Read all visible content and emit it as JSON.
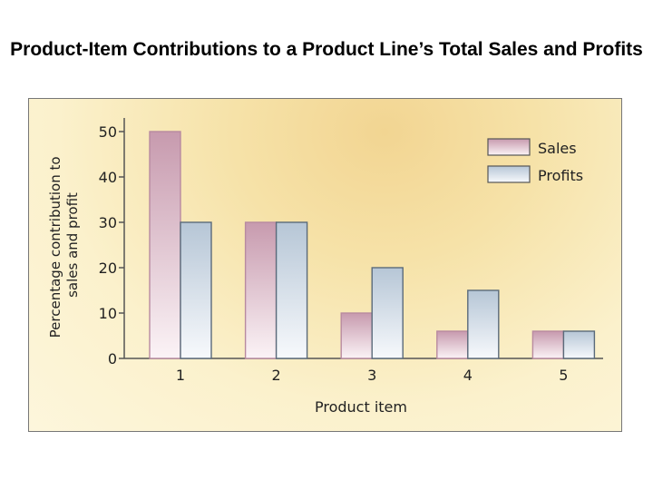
{
  "page": {
    "title": "Product-Item Contributions to a Product Line’s Total Sales and Profits"
  },
  "chart_data": {
    "type": "bar",
    "categories": [
      "1",
      "2",
      "3",
      "4",
      "5"
    ],
    "series": [
      {
        "name": "Sales",
        "values": [
          50,
          30,
          10,
          6,
          6
        ],
        "color": "#c9a0b0"
      },
      {
        "name": "Profits",
        "values": [
          30,
          30,
          20,
          15,
          6
        ],
        "color": "#b9c8d8"
      }
    ],
    "yticks": [
      "0",
      "10",
      "20",
      "30",
      "40",
      "50"
    ],
    "ylim": [
      0,
      55
    ],
    "xlabel": "Product item",
    "ylabel": "Percentage contribution to sales and profit",
    "legend_position": "top-right",
    "grid": false
  }
}
